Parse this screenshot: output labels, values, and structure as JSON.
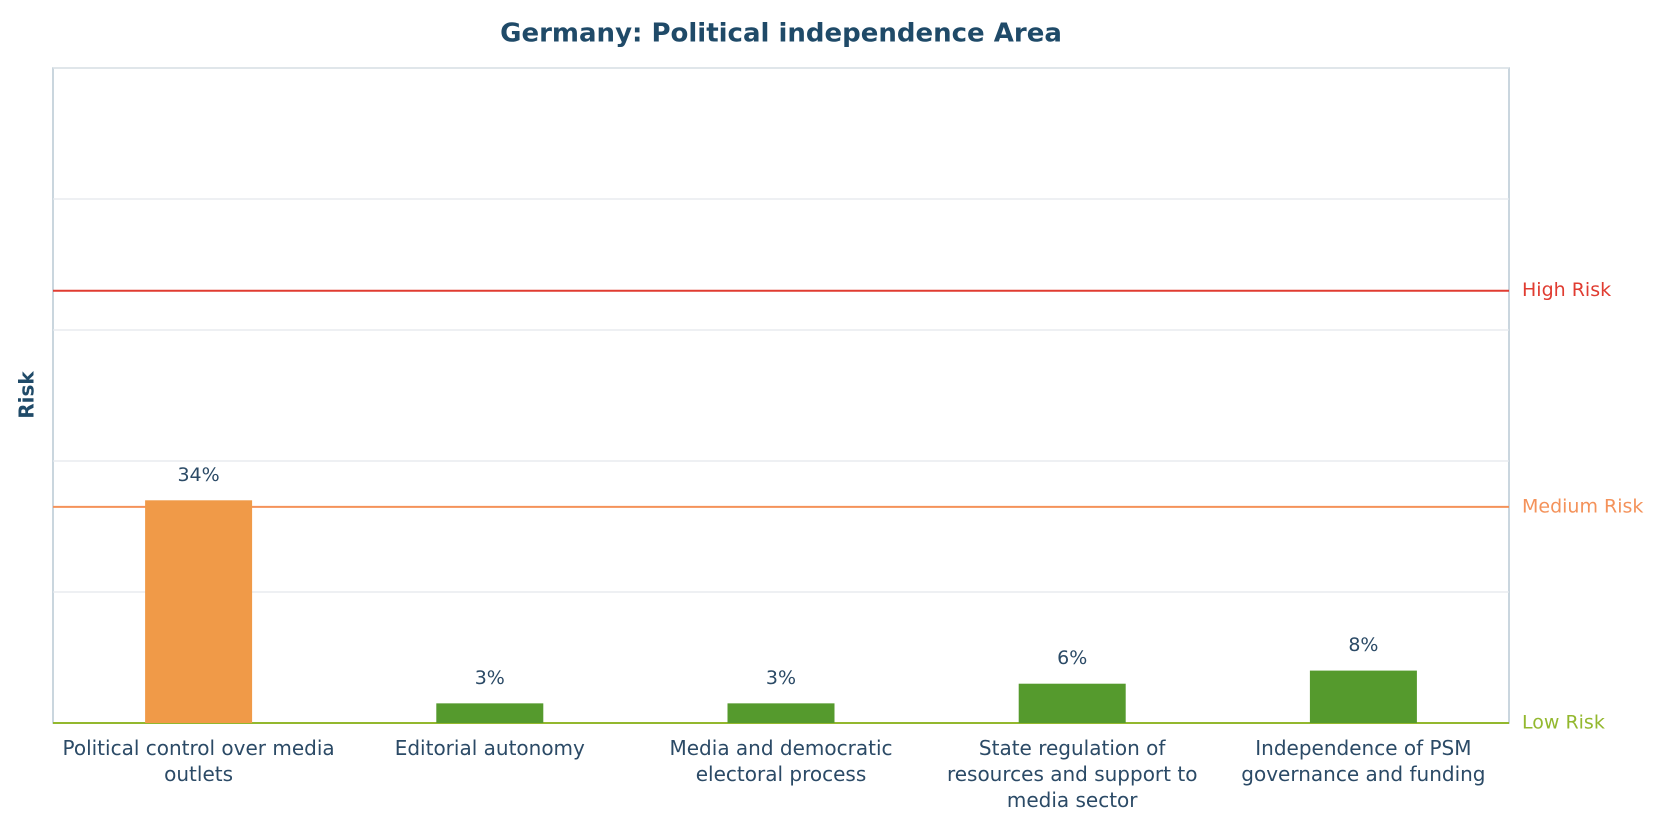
{
  "chart_data": {
    "type": "bar",
    "title": "Germany: Political independence Area",
    "y_label": "Risk",
    "categories": [
      "Political control over media outlets",
      "Editorial autonomy",
      "Media and democratic electoral process",
      "State regulation of resources and support to media sector",
      "Independence of PSM governance and funding"
    ],
    "values": [
      34,
      3,
      3,
      6,
      8
    ],
    "value_labels": [
      "34%",
      "3%",
      "3%",
      "6%",
      "8%"
    ],
    "colors": [
      "#f09a48",
      "#559a2d",
      "#559a2d",
      "#559a2d",
      "#559a2d"
    ],
    "ylim": [
      0,
      100
    ],
    "yticks": [
      0,
      20,
      40,
      60,
      80,
      100
    ],
    "grid": true,
    "thresholds": [
      {
        "label": "High Risk",
        "value": 66,
        "color": "#e03c31"
      },
      {
        "label": "Medium Risk",
        "value": 33,
        "color": "#f4925a"
      },
      {
        "label": "Low Risk",
        "value": 0,
        "color": "#93b82e"
      }
    ]
  }
}
